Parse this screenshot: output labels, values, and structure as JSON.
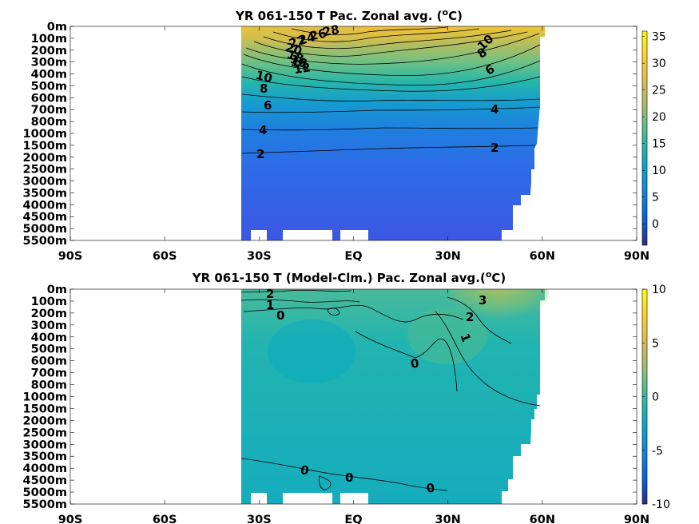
{
  "chart_data": [
    {
      "type": "heatmap",
      "title": "YR 061-150 T Pac. Zonal avg. (",
      "title_sup": "o",
      "title_tail": "C)",
      "x_ticks": [
        "90S",
        "60S",
        "30S",
        "EQ",
        "30N",
        "60N",
        "90N"
      ],
      "xlim": [
        -90,
        90
      ],
      "y_ticks": [
        "0m",
        "100m",
        "200m",
        "300m",
        "400m",
        "500m",
        "600m",
        "700m",
        "800m",
        "1000m",
        "1500m",
        "2000m",
        "2500m",
        "3000m",
        "3500m",
        "4000m",
        "4500m",
        "5000m",
        "5500m"
      ],
      "colorbar_ticks": [
        "35",
        "30",
        "25",
        "20",
        "15",
        "10",
        "5",
        "0"
      ],
      "colorbar_range": [
        -4,
        36
      ],
      "colormap": "parula",
      "contour_labels": [
        "28",
        "26",
        "24",
        "22",
        "20",
        "18",
        "16",
        "14",
        "12",
        "10",
        "8",
        "6",
        "4",
        "2",
        "10",
        "8",
        "6",
        "4",
        "2"
      ],
      "data_extent": {
        "lat": [
          -35,
          62
        ]
      }
    },
    {
      "type": "heatmap",
      "title": "YR 061-150 T (Model-Clm.) Pac. Zonal avg.(",
      "title_sup": "o",
      "title_tail": "C)",
      "x_ticks": [
        "90S",
        "60S",
        "30S",
        "EQ",
        "30N",
        "60N",
        "90N"
      ],
      "xlim": [
        -90,
        90
      ],
      "y_ticks": [
        "0m",
        "100m",
        "200m",
        "300m",
        "400m",
        "500m",
        "600m",
        "700m",
        "800m",
        "1000m",
        "1500m",
        "2000m",
        "2500m",
        "3000m",
        "3500m",
        "4000m",
        "4500m",
        "5000m",
        "5500m"
      ],
      "colorbar_ticks": [
        "10",
        "5",
        "0",
        "-5",
        "-10"
      ],
      "colorbar_range": [
        -10,
        10
      ],
      "colormap": "parula",
      "contour_labels": [
        "2",
        "1",
        "0",
        "0",
        "3",
        "2",
        "1",
        "0",
        "0",
        "0"
      ],
      "data_extent": {
        "lat": [
          -35,
          62
        ]
      }
    }
  ],
  "colors": {
    "parula": [
      "#352a87",
      "#0363e1",
      "#1485d4",
      "#06a7c6",
      "#38b99e",
      "#92bf73",
      "#d9ba56",
      "#fcce2e",
      "#f9fb0e"
    ]
  }
}
